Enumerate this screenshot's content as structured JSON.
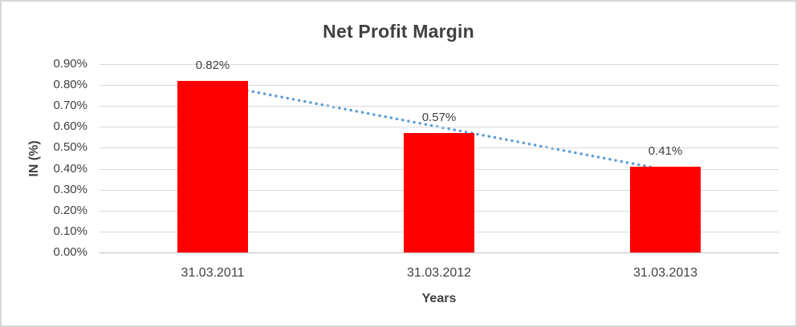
{
  "window": {
    "background": "#ffffff",
    "border_color": "#d8d8d8"
  },
  "chart_data": {
    "type": "bar",
    "title": "Net Profit Margin",
    "xlabel": "Years",
    "ylabel": "IN (%)",
    "categories": [
      "31.03.2011",
      "31.03.2012",
      "31.03.2013"
    ],
    "values": [
      0.82,
      0.57,
      0.41
    ],
    "data_labels": [
      "0.82%",
      "0.57%",
      "0.41%"
    ],
    "ylim": [
      0,
      0.9
    ],
    "y_tick_step": 0.1,
    "y_tick_labels": [
      "0.00%",
      "0.10%",
      "0.20%",
      "0.30%",
      "0.40%",
      "0.50%",
      "0.60%",
      "0.70%",
      "0.80%",
      "0.90%"
    ],
    "grid": true,
    "legend": "none",
    "bar_color": "#ff0000",
    "gridline_color": "#d9d9d9",
    "axis_line_color": "#bfbfbf",
    "text_color": "#404040",
    "trendline": {
      "type": "linear",
      "style": "dotted",
      "color": "#5b9bd5"
    }
  }
}
